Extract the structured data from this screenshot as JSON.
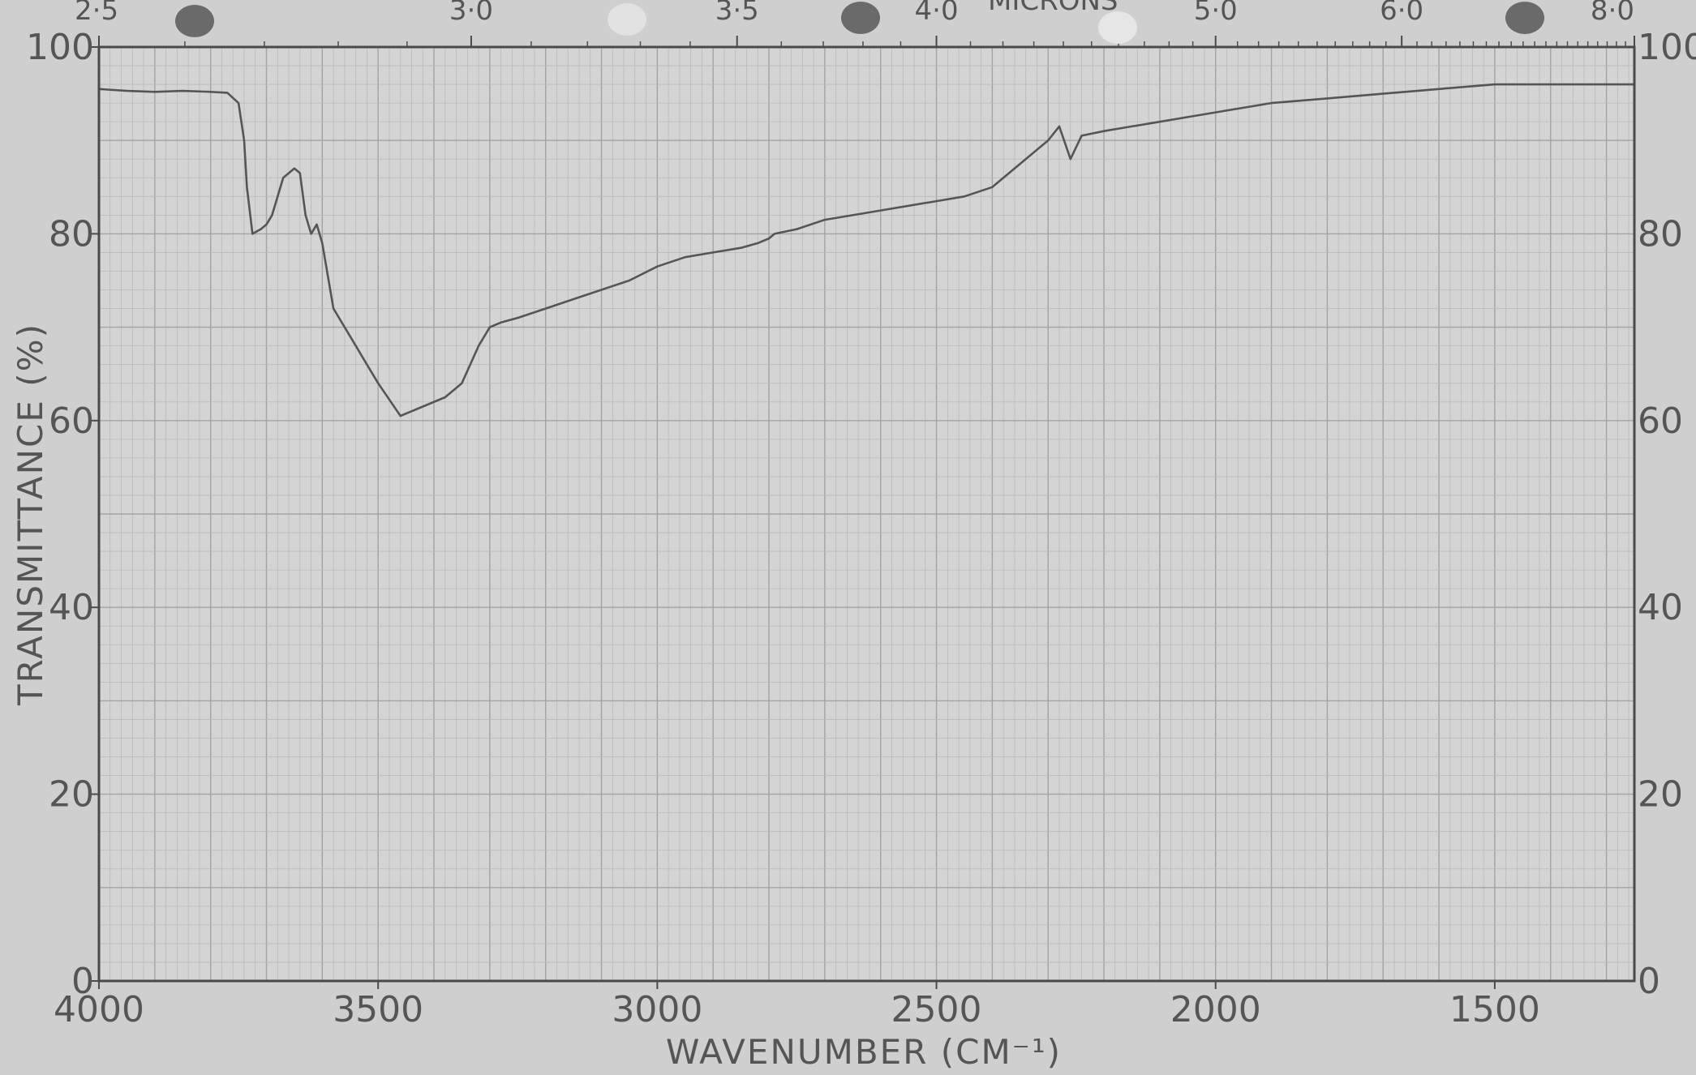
{
  "chart_data": {
    "type": "line",
    "title": "",
    "top_axis_label": "MICRONS",
    "top_ticks": [
      "2·5",
      "3·0",
      "3·5",
      "4·0",
      "5·0",
      "6·0",
      "8·0"
    ],
    "top_tick_values_cm": [
      4000,
      3333.3,
      2857.1,
      2500,
      2000,
      1666.7,
      1250
    ],
    "xlabel": "WAVENUMBER (CM⁻¹)",
    "ylabel": "TRANSMITTANCE (%)",
    "xlim": [
      4000,
      1250
    ],
    "ylim": [
      0,
      100
    ],
    "x_ticks": [
      4000,
      3500,
      3000,
      2500,
      2000,
      1500
    ],
    "x_tick_labels": [
      "4000",
      "3500",
      "3000",
      "2500",
      "2000",
      "1500"
    ],
    "y_ticks": [
      0,
      20,
      40,
      60,
      80,
      100
    ],
    "y_tick_labels_left": [
      "0",
      "20",
      "40",
      "60",
      "80",
      "100"
    ],
    "y_tick_labels_right": [
      "0",
      "20",
      "40",
      "60",
      "80",
      "100"
    ],
    "grid": true,
    "series": [
      {
        "x": [
          4000,
          3950,
          3900,
          3850,
          3800,
          3770,
          3750,
          3740,
          3735,
          3725,
          3710,
          3700,
          3690,
          3670,
          3650,
          3640,
          3630,
          3620,
          3610,
          3600,
          3580,
          3550,
          3520,
          3500,
          3460,
          3420,
          3380,
          3350,
          3320,
          3300,
          3280,
          3250,
          3200,
          3150,
          3100,
          3050,
          3000,
          2950,
          2900,
          2850,
          2820,
          2800,
          2790,
          2750,
          2700,
          2600,
          2500,
          2450,
          2400,
          2350,
          2300,
          2280,
          2260,
          2240,
          2200,
          2150,
          2100,
          2050,
          2000,
          1950,
          1900,
          1800,
          1700,
          1600,
          1500,
          1400,
          1300,
          1250
        ],
        "y": [
          95.5,
          95.3,
          95.2,
          95.3,
          95.2,
          95.1,
          94.0,
          90.0,
          85.0,
          80.0,
          80.5,
          81.0,
          82.0,
          86.0,
          87.0,
          86.5,
          82.0,
          80.0,
          81.0,
          79.0,
          72.0,
          69.0,
          66.0,
          64.0,
          60.5,
          61.5,
          62.5,
          64.0,
          68.0,
          70.0,
          70.5,
          71.0,
          72.0,
          73.0,
          74.0,
          75.0,
          76.5,
          77.5,
          78.0,
          78.5,
          79.0,
          79.5,
          80.0,
          80.5,
          81.5,
          82.5,
          83.5,
          84.0,
          85.0,
          87.5,
          90.0,
          91.5,
          88.0,
          90.5,
          91.0,
          91.5,
          92.0,
          92.5,
          93.0,
          93.5,
          94.0,
          94.5,
          95.0,
          95.5,
          96.0,
          96.0,
          96.0,
          96.0
        ]
      }
    ]
  },
  "colors": {
    "paper": "#d4d4d4",
    "grid_minor": "#b9b9b9",
    "grid_major": "#a3a3a3",
    "frame": "#4a4a4a",
    "trace": "#555555",
    "hole": "#6a6a6a"
  }
}
